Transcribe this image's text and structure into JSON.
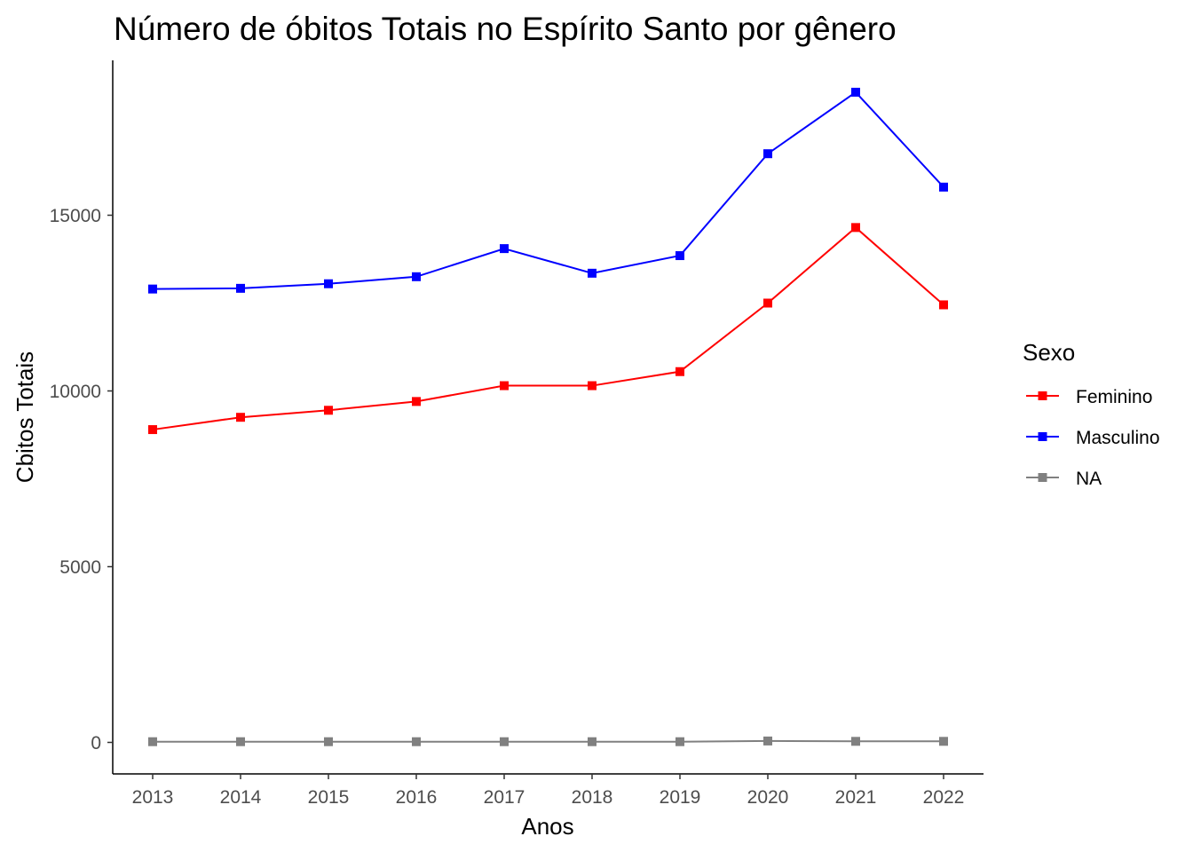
{
  "chart_data": {
    "type": "line",
    "title": "Número de óbitos Totais no Espírito Santo por gênero",
    "xlabel": "Anos",
    "ylabel": "Cbitos Totais",
    "x": [
      2013,
      2014,
      2015,
      2016,
      2017,
      2018,
      2019,
      2020,
      2021,
      2022
    ],
    "x_tick_labels": [
      "2013",
      "2014",
      "2015",
      "2016",
      "2017",
      "2018",
      "2019",
      "2020",
      "2021",
      "2022"
    ],
    "y_ticks": [
      0,
      5000,
      10000,
      15000
    ],
    "y_tick_labels": [
      "0",
      "5000",
      "10000",
      "15000"
    ],
    "ylim": [
      -900,
      19200
    ],
    "grid": false,
    "marker": "square",
    "legend": {
      "title": "Sexo",
      "position": "right"
    },
    "series": [
      {
        "name": "Feminino",
        "color": "#ff0000",
        "values": [
          8900,
          9250,
          9450,
          9700,
          10150,
          10150,
          10550,
          12500,
          14650,
          12450
        ]
      },
      {
        "name": "Masculino",
        "color": "#0000ff",
        "values": [
          12900,
          12920,
          13050,
          13250,
          14050,
          13350,
          13850,
          16750,
          18500,
          15800
        ]
      },
      {
        "name": "NA",
        "color": "#808080",
        "values": [
          20,
          20,
          20,
          20,
          20,
          20,
          20,
          40,
          30,
          30
        ]
      }
    ]
  }
}
